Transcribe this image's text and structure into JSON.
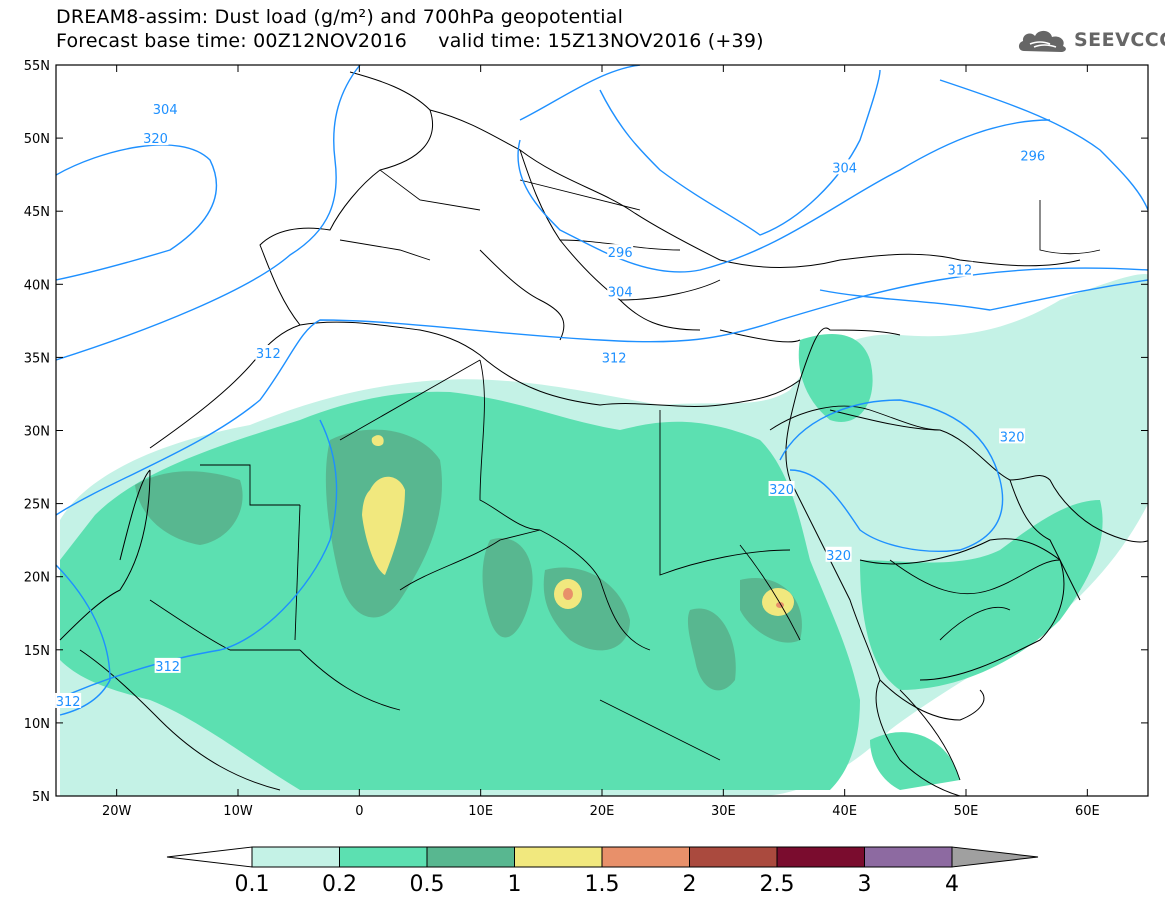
{
  "title": {
    "line1": "DREAM8-assim: Dust load (g/m²) and 700hPa geopotential",
    "line2": "Forecast base time: 00Z12NOV2016     valid time: 15Z13NOV2016 (+39)"
  },
  "logo": {
    "text": "SEEVCCC",
    "icon": "cloud-icon"
  },
  "axes": {
    "lat_labels": [
      "55N",
      "50N",
      "45N",
      "40N",
      "35N",
      "30N",
      "25N",
      "20N",
      "15N",
      "10N",
      "5N"
    ],
    "lon_labels": [
      "20W",
      "10W",
      "0",
      "10E",
      "20E",
      "30E",
      "40E",
      "50E",
      "60E"
    ],
    "lon_range": [
      -25,
      65
    ],
    "lat_range": [
      5,
      55
    ]
  },
  "contours": {
    "color": "#1e90ff",
    "labels": [
      {
        "text": "304",
        "lon": -16.0,
        "lat": 52.0
      },
      {
        "text": "320",
        "lon": -16.8,
        "lat": 50.0
      },
      {
        "text": "296",
        "lon": 55.5,
        "lat": 48.8
      },
      {
        "text": "304",
        "lon": 40.0,
        "lat": 48.0
      },
      {
        "text": "296",
        "lon": 21.5,
        "lat": 42.2
      },
      {
        "text": "304",
        "lon": 21.5,
        "lat": 39.5
      },
      {
        "text": "312",
        "lon": 49.5,
        "lat": 41.0
      },
      {
        "text": "312",
        "lon": -7.5,
        "lat": 35.3
      },
      {
        "text": "312",
        "lon": 21.0,
        "lat": 35.0
      },
      {
        "text": "320",
        "lon": 53.8,
        "lat": 29.6
      },
      {
        "text": "320",
        "lon": 34.8,
        "lat": 26.0
      },
      {
        "text": "320",
        "lon": 39.5,
        "lat": 21.5
      },
      {
        "text": "312",
        "lon": -15.8,
        "lat": 13.9
      },
      {
        "text": "312",
        "lon": -24.0,
        "lat": 11.5
      }
    ]
  },
  "colorbar": {
    "labels": [
      "0.1",
      "0.2",
      "0.5",
      "1",
      "1.5",
      "2",
      "2.5",
      "3",
      "4"
    ],
    "colors": [
      "#c4f2e6",
      "#5ce0b1",
      "#58b790",
      "#f1e87e",
      "#e8906a",
      "#aa4a3e",
      "#7a0c2e",
      "#8d6aa1",
      "#a0a0a0"
    ]
  }
}
